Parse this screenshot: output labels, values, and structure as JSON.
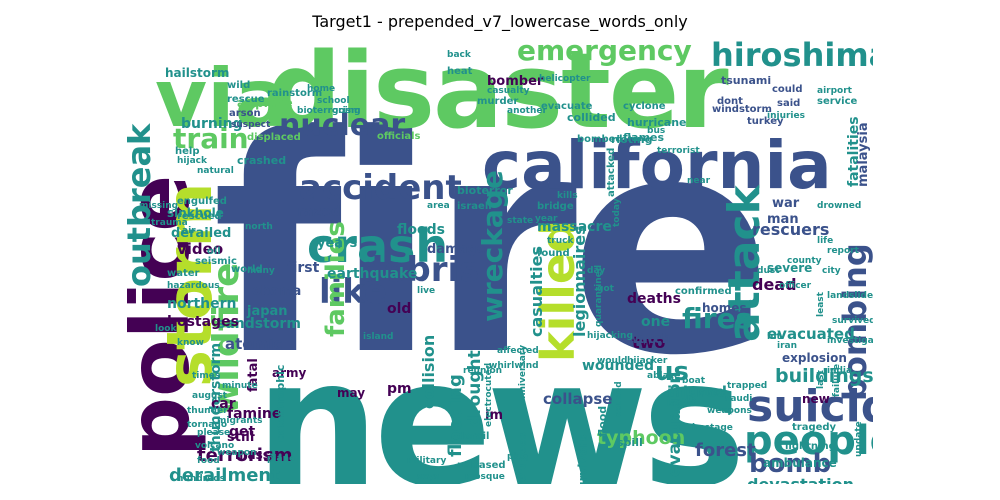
{
  "title": "Target1 - prepended_v7_lowercase_words_only",
  "palette": {
    "dark_purple": "#440154",
    "indigo": "#3b528b",
    "teal": "#21918c",
    "green": "#5ec962",
    "yellow_green": "#b5de2b"
  },
  "words": [
    {
      "text": "fire",
      "color": "#3b528b"
    },
    {
      "text": "news",
      "color": "#21918c"
    },
    {
      "text": "disaster",
      "color": "#5ec962"
    },
    {
      "text": "police",
      "color": "#440154"
    },
    {
      "text": "via",
      "color": "#5ec962"
    },
    {
      "text": "california",
      "color": "#3b528b"
    },
    {
      "text": "storm",
      "color": "#b5de2b"
    },
    {
      "text": "suicide",
      "color": "#3b528b"
    },
    {
      "text": "people",
      "color": "#21918c"
    },
    {
      "text": "crash",
      "color": "#21918c"
    },
    {
      "text": "accident",
      "color": "#3b528b"
    },
    {
      "text": "killed",
      "color": "#b5de2b"
    },
    {
      "text": "attack",
      "color": "#21918c"
    },
    {
      "text": "wildfire",
      "color": "#5ec962"
    },
    {
      "text": "outbreak",
      "color": "#21918c"
    },
    {
      "text": "hiroshima",
      "color": "#21918c"
    },
    {
      "text": "emergency",
      "color": "#5ec962"
    },
    {
      "text": "nuclear",
      "color": "#3b528b"
    },
    {
      "text": "bombing",
      "color": "#3b528b"
    },
    {
      "text": "like",
      "color": "#3b528b"
    },
    {
      "text": "debris",
      "color": "#3b528b"
    },
    {
      "text": "bomb",
      "color": "#3b528b"
    },
    {
      "text": "fires",
      "color": "#21918c"
    },
    {
      "text": "train",
      "color": "#5ec962"
    },
    {
      "text": "wreckage",
      "color": "#21918c"
    },
    {
      "text": "families",
      "color": "#5ec962"
    },
    {
      "text": "us",
      "color": "#21918c"
    },
    {
      "text": "devastation",
      "color": "#21918c"
    },
    {
      "text": "derailment",
      "color": "#21918c"
    },
    {
      "text": "buildings",
      "color": "#21918c"
    },
    {
      "text": "typhoon",
      "color": "#5ec962"
    },
    {
      "text": "flooding",
      "color": "#21918c"
    },
    {
      "text": "drought",
      "color": "#21918c"
    },
    {
      "text": "terrorism",
      "color": "#440154"
    },
    {
      "text": "forest",
      "color": "#3b528b"
    },
    {
      "text": "evacuation",
      "color": "#21918c"
    },
    {
      "text": "legionnaires",
      "color": "#21918c"
    },
    {
      "text": "casualties",
      "color": "#21918c"
    },
    {
      "text": "collision",
      "color": "#21918c"
    },
    {
      "text": "sandstorm",
      "color": "#21918c"
    },
    {
      "text": "thunderstorm",
      "color": "#21918c"
    },
    {
      "text": "atomic",
      "color": "#3b528b"
    },
    {
      "text": "fatalities",
      "color": "#21918c"
    },
    {
      "text": "malaysia",
      "color": "#3b528b"
    },
    {
      "text": "rescuers",
      "color": "#3b528b"
    },
    {
      "text": "massacre",
      "color": "#21918c"
    },
    {
      "text": "razed",
      "color": "#3b528b"
    },
    {
      "text": "burning",
      "color": "#21918c"
    },
    {
      "text": "hailstorm",
      "color": "#21918c"
    },
    {
      "text": "sinkhole",
      "color": "#21918c"
    },
    {
      "text": "derailed",
      "color": "#21918c"
    },
    {
      "text": "video",
      "color": "#440154"
    },
    {
      "text": "northern",
      "color": "#21918c"
    },
    {
      "text": "hostages",
      "color": "#440154"
    },
    {
      "text": "earthquake",
      "color": "#21918c"
    },
    {
      "text": "obama",
      "color": "#3b528b"
    },
    {
      "text": "japan",
      "color": "#21918c"
    },
    {
      "text": "deaths",
      "color": "#440154"
    },
    {
      "text": "dead",
      "color": "#440154"
    },
    {
      "text": "evacuated",
      "color": "#21918c"
    },
    {
      "text": "injured",
      "color": "#21918c"
    },
    {
      "text": "collapse",
      "color": "#3b528b"
    },
    {
      "text": "wounded",
      "color": "#21918c"
    },
    {
      "text": "famine",
      "color": "#440154"
    },
    {
      "text": "car",
      "color": "#440154"
    },
    {
      "text": "get",
      "color": "#440154"
    },
    {
      "text": "pm",
      "color": "#440154"
    },
    {
      "text": "old",
      "color": "#440154"
    },
    {
      "text": "two",
      "color": "#440154"
    },
    {
      "text": "one",
      "color": "#21918c"
    },
    {
      "text": "first",
      "color": "#3b528b"
    },
    {
      "text": "years",
      "color": "#21918c"
    },
    {
      "text": "floods",
      "color": "#21918c"
    },
    {
      "text": "damage",
      "color": "#3b528b"
    },
    {
      "text": "war",
      "color": "#3b528b"
    },
    {
      "text": "man",
      "color": "#3b528b"
    },
    {
      "text": "watch",
      "color": "#3b528b"
    },
    {
      "text": "fatal",
      "color": "#440154"
    },
    {
      "text": "army",
      "color": "#440154"
    },
    {
      "text": "still",
      "color": "#440154"
    },
    {
      "text": "mass",
      "color": "#440154"
    },
    {
      "text": "im",
      "color": "#440154"
    },
    {
      "text": "may",
      "color": "#440154"
    },
    {
      "text": "severe",
      "color": "#21918c"
    },
    {
      "text": "homes",
      "color": "#3b528b"
    },
    {
      "text": "explosion",
      "color": "#3b528b"
    },
    {
      "text": "survivors",
      "color": "#21918c"
    },
    {
      "text": "refugees",
      "color": "#21918c"
    },
    {
      "text": "ambulance",
      "color": "#21918c"
    },
    {
      "text": "new",
      "color": "#440154"
    },
    {
      "text": "spill",
      "color": "#21918c"
    },
    {
      "text": "flood",
      "color": "#21918c"
    },
    {
      "text": "catastrophic",
      "color": "#21918c"
    },
    {
      "text": "crashed",
      "color": "#21918c"
    },
    {
      "text": "bioterror",
      "color": "#21918c"
    },
    {
      "text": "rioting",
      "color": "#21918c"
    },
    {
      "text": "hurricane",
      "color": "#21918c"
    },
    {
      "text": "collided",
      "color": "#21918c"
    },
    {
      "text": "bomber",
      "color": "#440154"
    },
    {
      "text": "airplane",
      "color": "#5ec962"
    },
    {
      "text": "flames",
      "color": "#21918c"
    },
    {
      "text": "bombed",
      "color": "#21918c"
    },
    {
      "text": "cyclone",
      "color": "#21918c"
    },
    {
      "text": "rescue",
      "color": "#21918c"
    },
    {
      "text": "arson",
      "color": "#3b528b"
    },
    {
      "text": "suspect",
      "color": "#3b528b"
    },
    {
      "text": "displaced",
      "color": "#5ec962"
    },
    {
      "text": "evacuate",
      "color": "#21918c"
    },
    {
      "text": "officials",
      "color": "#5ec962"
    },
    {
      "text": "tsunami",
      "color": "#3b528b"
    },
    {
      "text": "windstorm",
      "color": "#3b528b"
    },
    {
      "text": "could",
      "color": "#3b528b"
    },
    {
      "text": "said",
      "color": "#3b528b"
    },
    {
      "text": "turkey",
      "color": "#3b528b"
    },
    {
      "text": "dont",
      "color": "#3b528b"
    },
    {
      "text": "tragedy",
      "color": "#21918c"
    },
    {
      "text": "lightning",
      "color": "#21918c"
    },
    {
      "text": "investigators",
      "color": "#21918c"
    },
    {
      "text": "survived",
      "color": "#21918c"
    },
    {
      "text": "city",
      "color": "#21918c"
    },
    {
      "text": "confirmed",
      "color": "#21918c"
    },
    {
      "text": "engulfed",
      "color": "#21918c"
    },
    {
      "text": "rescued",
      "color": "#21918c"
    },
    {
      "text": "hazardous",
      "color": "#21918c"
    },
    {
      "text": "water",
      "color": "#21918c"
    },
    {
      "text": "seismic",
      "color": "#21918c"
    },
    {
      "text": "world",
      "color": "#21918c"
    },
    {
      "text": "oil",
      "color": "#21918c"
    },
    {
      "text": "weapon",
      "color": "#21918c"
    },
    {
      "text": "volcano",
      "color": "#21918c"
    },
    {
      "text": "please",
      "color": "#21918c"
    },
    {
      "text": "hundreds",
      "color": "#21918c"
    },
    {
      "text": "food",
      "color": "#21918c"
    },
    {
      "text": "tornado",
      "color": "#21918c"
    },
    {
      "text": "migrants",
      "color": "#21918c"
    },
    {
      "text": "minute",
      "color": "#21918c"
    },
    {
      "text": "thunder",
      "color": "#21918c"
    },
    {
      "text": "times",
      "color": "#21918c"
    },
    {
      "text": "august",
      "color": "#21918c"
    },
    {
      "text": "heat",
      "color": "#21918c"
    },
    {
      "text": "murder",
      "color": "#21918c"
    },
    {
      "text": "help",
      "color": "#21918c"
    },
    {
      "text": "wild",
      "color": "#21918c"
    },
    {
      "text": "rainstorm",
      "color": "#21918c"
    },
    {
      "text": "hijack",
      "color": "#21918c"
    },
    {
      "text": "natural",
      "color": "#21918c"
    },
    {
      "text": "israeli",
      "color": "#21918c"
    },
    {
      "text": "bridge",
      "color": "#21918c"
    },
    {
      "text": "kills",
      "color": "#21918c"
    },
    {
      "text": "year",
      "color": "#21918c"
    },
    {
      "text": "area",
      "color": "#21918c"
    },
    {
      "text": "state",
      "color": "#21918c"
    },
    {
      "text": "found",
      "color": "#21918c"
    },
    {
      "text": "truck",
      "color": "#21918c"
    },
    {
      "text": "quarantined",
      "color": "#21918c"
    },
    {
      "text": "electrocuted",
      "color": "#21918c"
    },
    {
      "text": "anniversary",
      "color": "#21918c"
    },
    {
      "text": "released",
      "color": "#21918c"
    },
    {
      "text": "mosque",
      "color": "#21918c"
    },
    {
      "text": "says",
      "color": "#21918c"
    },
    {
      "text": "derail",
      "color": "#21918c"
    },
    {
      "text": "whirlwind",
      "color": "#21918c"
    },
    {
      "text": "affected",
      "color": "#21918c"
    },
    {
      "text": "reunion",
      "color": "#21918c"
    },
    {
      "text": "military",
      "color": "#21918c"
    },
    {
      "text": "caused",
      "color": "#21918c"
    },
    {
      "text": "hijacking",
      "color": "#21918c"
    },
    {
      "text": "hijacker",
      "color": "#21918c"
    },
    {
      "text": "officer",
      "color": "#21918c"
    },
    {
      "text": "landslide",
      "color": "#21918c"
    },
    {
      "text": "hit",
      "color": "#21918c"
    },
    {
      "text": "iran",
      "color": "#21918c"
    },
    {
      "text": "india",
      "color": "#21918c"
    },
    {
      "text": "failure",
      "color": "#21918c"
    },
    {
      "text": "trapped",
      "color": "#21918c"
    },
    {
      "text": "latest",
      "color": "#21918c"
    },
    {
      "text": "ablaze",
      "color": "#21918c"
    },
    {
      "text": "boat",
      "color": "#21918c"
    },
    {
      "text": "rt",
      "color": "#21918c"
    },
    {
      "text": "since",
      "color": "#21918c"
    },
    {
      "text": "weapons",
      "color": "#21918c"
    },
    {
      "text": "hostage",
      "color": "#21918c"
    },
    {
      "text": "saudi",
      "color": "#21918c"
    },
    {
      "text": "last",
      "color": "#21918c"
    },
    {
      "text": "update",
      "color": "#21918c"
    },
    {
      "text": "injuries",
      "color": "#21918c"
    },
    {
      "text": "service",
      "color": "#21918c"
    },
    {
      "text": "airport",
      "color": "#21918c"
    },
    {
      "text": "bus",
      "color": "#21918c"
    },
    {
      "text": "attacked",
      "color": "#21918c"
    },
    {
      "text": "terrorist",
      "color": "#21918c"
    },
    {
      "text": "dust",
      "color": "#21918c"
    },
    {
      "text": "near",
      "color": "#21918c"
    },
    {
      "text": "today",
      "color": "#21918c"
    },
    {
      "text": "bioterrorism",
      "color": "#21918c"
    },
    {
      "text": "home",
      "color": "#21918c"
    },
    {
      "text": "school",
      "color": "#21918c"
    },
    {
      "text": "another",
      "color": "#21918c"
    },
    {
      "text": "going",
      "color": "#21918c"
    },
    {
      "text": "casualty",
      "color": "#21918c"
    },
    {
      "text": "helicopter",
      "color": "#21918c"
    },
    {
      "text": "drowned",
      "color": "#21918c"
    },
    {
      "text": "life",
      "color": "#21918c"
    },
    {
      "text": "county",
      "color": "#21918c"
    },
    {
      "text": "report",
      "color": "#21918c"
    },
    {
      "text": "back",
      "color": "#21918c"
    },
    {
      "text": "least",
      "color": "#21918c"
    },
    {
      "text": "missing",
      "color": "#21918c"
    },
    {
      "text": "trauma",
      "color": "#21918c"
    },
    {
      "text": "air",
      "color": "#21918c"
    },
    {
      "text": "look",
      "color": "#21918c"
    },
    {
      "text": "know",
      "color": "#21918c"
    },
    {
      "text": "would",
      "color": "#21918c"
    },
    {
      "text": "day",
      "color": "#21918c"
    },
    {
      "text": "got",
      "color": "#21918c"
    },
    {
      "text": "live",
      "color": "#21918c"
    },
    {
      "text": "many",
      "color": "#21918c"
    },
    {
      "text": "plane",
      "color": "#21918c"
    },
    {
      "text": "pkk",
      "color": "#21918c"
    },
    {
      "text": "island",
      "color": "#21918c"
    },
    {
      "text": "north",
      "color": "#21918c"
    },
    {
      "text": "sue",
      "color": "#21918c"
    },
    {
      "text": "structural",
      "color": "#21918c"
    }
  ]
}
